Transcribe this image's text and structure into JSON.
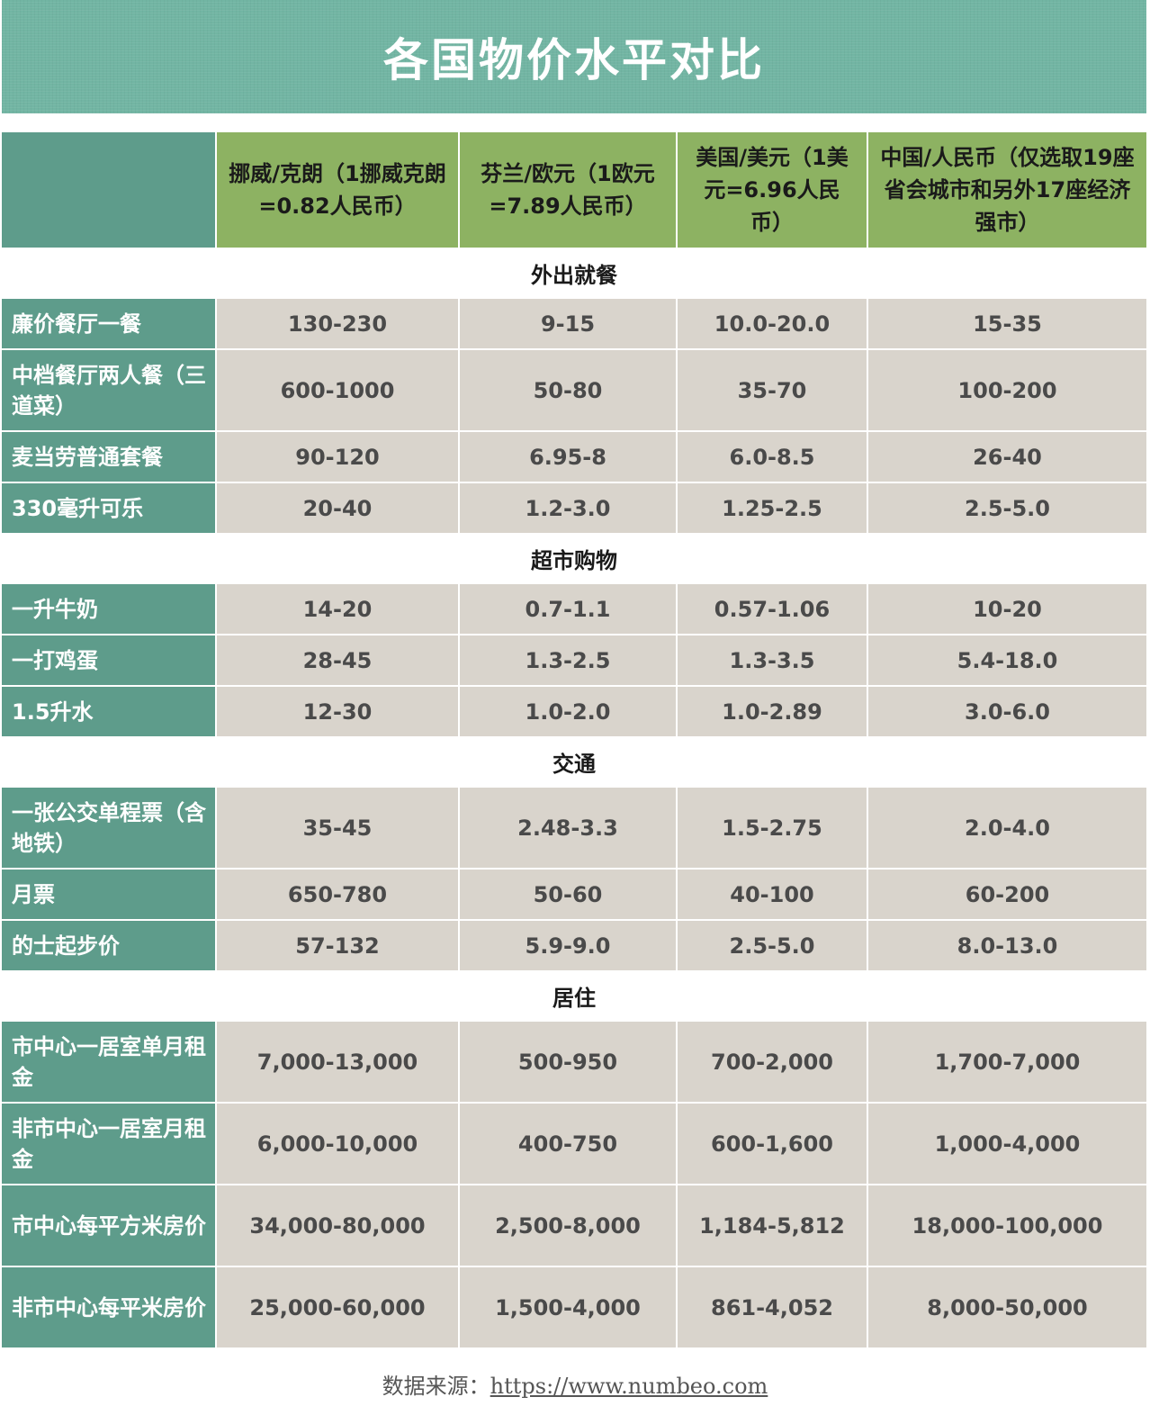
{
  "title": "各国物价水平对比",
  "columns": [
    "",
    "挪威/克朗（1挪威克朗=0.82人民币）",
    "芬兰/欧元（1欧元=7.89人民币）",
    "美国/美元（1美元=6.96人民币）",
    "中国/人民币（仅选取19座省会城市和另外17座经济强市）"
  ],
  "sections": [
    {
      "name": "外出就餐",
      "rows": [
        {
          "label": "廉价餐厅一餐",
          "values": [
            "130-230",
            "9-15",
            "10.0-20.0",
            "15-35"
          ]
        },
        {
          "label": "中档餐厅两人餐（三道菜）",
          "values": [
            "600-1000",
            "50-80",
            "35-70",
            "100-200"
          ]
        },
        {
          "label": "麦当劳普通套餐",
          "values": [
            "90-120",
            "6.95-8",
            "6.0-8.5",
            "26-40"
          ]
        },
        {
          "label": "330毫升可乐",
          "values": [
            "20-40",
            "1.2-3.0",
            "1.25-2.5",
            "2.5-5.0"
          ]
        }
      ]
    },
    {
      "name": "超市购物",
      "rows": [
        {
          "label": "一升牛奶",
          "values": [
            "14-20",
            "0.7-1.1",
            "0.57-1.06",
            "10-20"
          ]
        },
        {
          "label": "一打鸡蛋",
          "values": [
            "28-45",
            "1.3-2.5",
            "1.3-3.5",
            "5.4-18.0"
          ]
        },
        {
          "label": "1.5升水",
          "values": [
            "12-30",
            "1.0-2.0",
            "1.0-2.89",
            "3.0-6.0"
          ]
        }
      ]
    },
    {
      "name": "交通",
      "rows": [
        {
          "label": "一张公交单程票（含地铁）",
          "values": [
            "35-45",
            "2.48-3.3",
            "1.5-2.75",
            "2.0-4.0"
          ]
        },
        {
          "label": "月票",
          "values": [
            "650-780",
            "50-60",
            "40-100",
            "60-200"
          ]
        },
        {
          "label": "的士起步价",
          "values": [
            "57-132",
            "5.9-9.0",
            "2.5-5.0",
            "8.0-13.0"
          ]
        }
      ]
    },
    {
      "name": "居住",
      "rows": [
        {
          "label": "市中心一居室单月租金",
          "values": [
            "7,000-13,000",
            "500-950",
            "700-2,000",
            "1,700-7,000"
          ]
        },
        {
          "label": "非市中心一居室月租金",
          "values": [
            "6,000-10,000",
            "400-750",
            "600-1,600",
            "1,000-4,000"
          ]
        },
        {
          "label": "市中心每平方米房价",
          "values": [
            "34,000-80,000",
            "2,500-8,000",
            "1,184-5,812",
            "18,000-100,000"
          ]
        },
        {
          "label": "非市中心每平米房价",
          "values": [
            "25,000-60,000",
            "1,500-4,000",
            "861-4,052",
            "8,000-50,000"
          ]
        }
      ]
    }
  ],
  "source": {
    "label": "数据来源：",
    "url": "https://www.numbeo.com"
  }
}
